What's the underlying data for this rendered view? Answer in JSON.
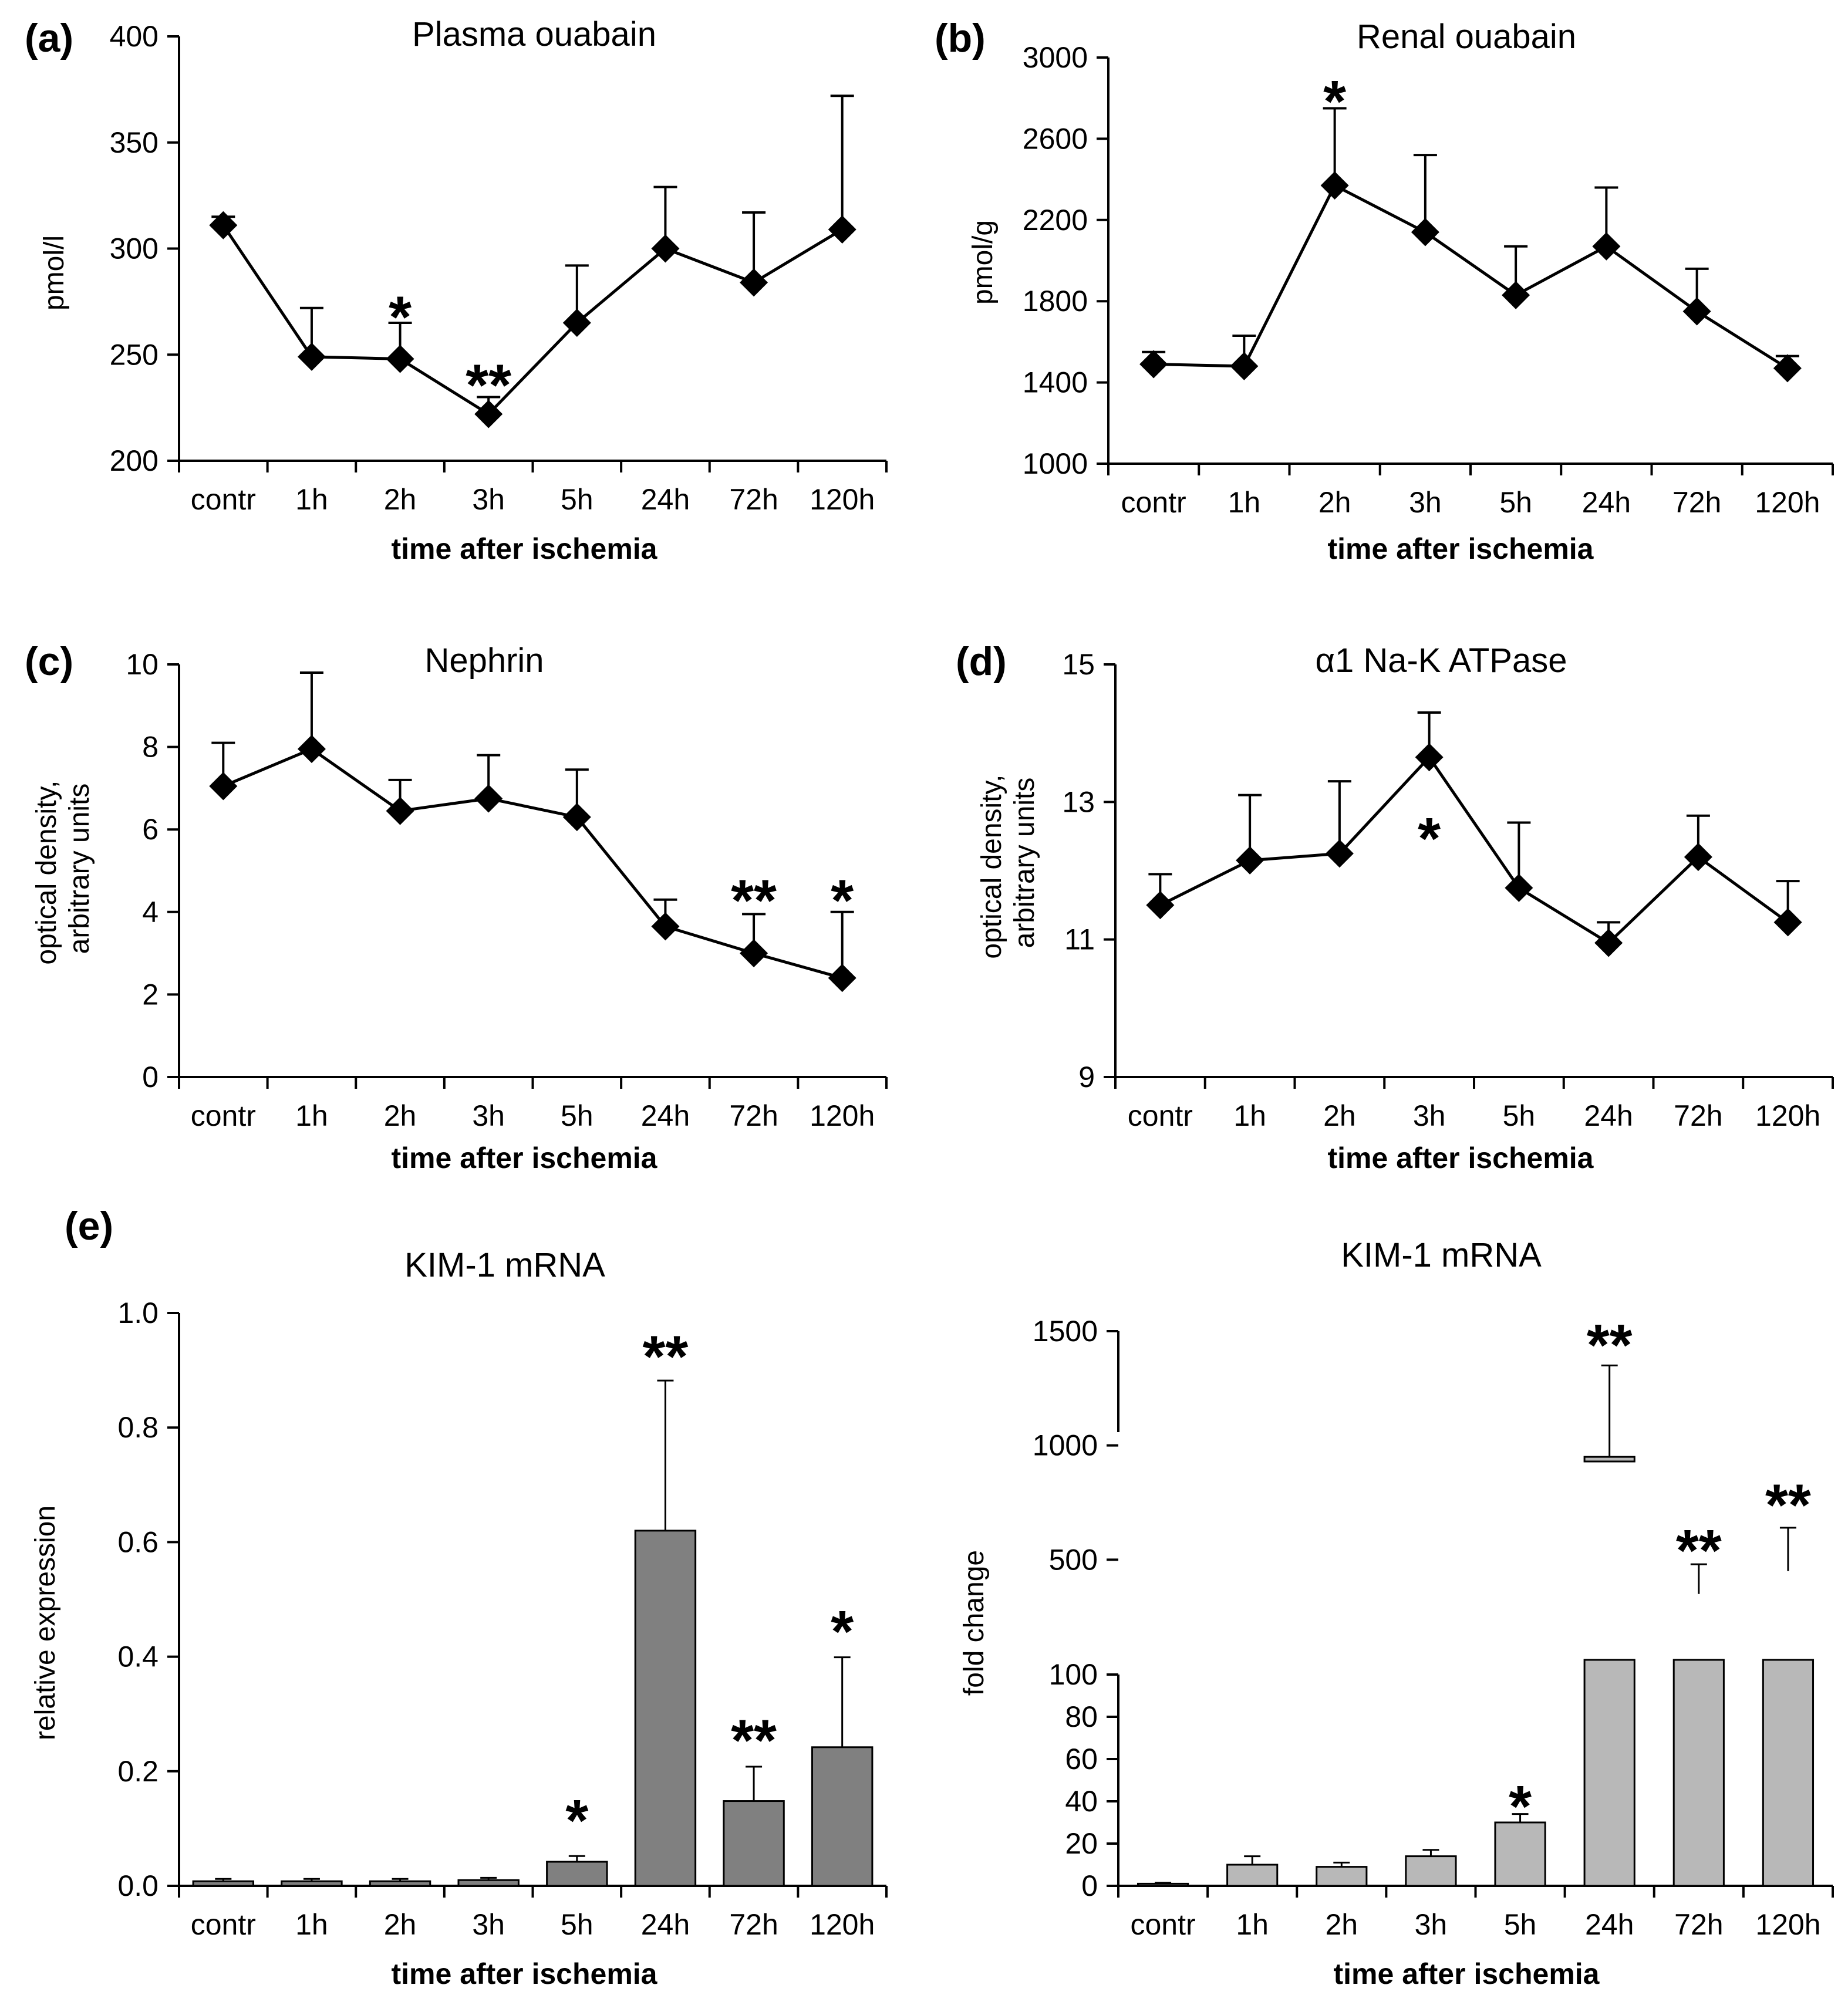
{
  "figure": {
    "xlabel": "time after ischemia",
    "categories": [
      "contr",
      "1h",
      "2h",
      "3h",
      "5h",
      "24h",
      "72h",
      "120h"
    ]
  },
  "chart_data": [
    {
      "id": "a",
      "panel": "(a)",
      "type": "line",
      "title": "Plasma ouabain",
      "ylabel": "pmol/l",
      "xlabel": "time after ischemia",
      "categories": [
        "contr",
        "1h",
        "2h",
        "3h",
        "5h",
        "24h",
        "72h",
        "120h"
      ],
      "ylim": [
        200,
        400
      ],
      "yticks": [
        200,
        250,
        300,
        350,
        400
      ],
      "values": [
        311,
        249,
        248,
        222,
        265,
        300,
        284,
        309
      ],
      "errors": [
        4,
        23,
        17,
        8,
        27,
        29,
        33,
        63
      ],
      "stars": [
        {
          "index": 2,
          "label": "*",
          "value": 272
        },
        {
          "index": 3,
          "label": "**",
          "value": 240
        }
      ]
    },
    {
      "id": "b",
      "panel": "(b)",
      "type": "line",
      "title": "Renal ouabain",
      "ylabel": "pmol/g",
      "xlabel": "time after ischemia",
      "categories": [
        "contr",
        "1h",
        "2h",
        "3h",
        "5h",
        "24h",
        "72h",
        "120h"
      ],
      "ylim": [
        1000,
        3000
      ],
      "yticks": [
        1000,
        1400,
        1800,
        2200,
        2600,
        3000
      ],
      "values": [
        1490,
        1480,
        2370,
        2140,
        1830,
        2070,
        1750,
        1470
      ],
      "errors": [
        60,
        150,
        380,
        380,
        240,
        290,
        210,
        60
      ],
      "stars": [
        {
          "index": 2,
          "label": "*",
          "value": 2830
        }
      ]
    },
    {
      "id": "c",
      "panel": "(c)",
      "type": "line",
      "title": "Nephrin",
      "ylabel": [
        "optical density,",
        "arbitrary units"
      ],
      "xlabel": "time after ischemia",
      "categories": [
        "contr",
        "1h",
        "2h",
        "3h",
        "5h",
        "24h",
        "72h",
        "120h"
      ],
      "ylim": [
        0,
        10
      ],
      "yticks": [
        0,
        2,
        4,
        6,
        8,
        10
      ],
      "values": [
        7.05,
        7.95,
        6.45,
        6.75,
        6.3,
        3.65,
        3.0,
        2.4
      ],
      "errors": [
        1.05,
        1.85,
        0.75,
        1.05,
        1.15,
        0.65,
        0.95,
        1.6
      ],
      "stars": [
        {
          "index": 6,
          "label": "**",
          "value": 4.5
        },
        {
          "index": 7,
          "label": "*",
          "value": 4.5
        }
      ]
    },
    {
      "id": "d",
      "panel": "(d)",
      "type": "line",
      "title": "α1 Na-K ATPase",
      "ylabel": [
        "optical density,",
        "arbitrary units"
      ],
      "xlabel": "time after ischemia",
      "categories": [
        "contr",
        "1h",
        "2h",
        "3h",
        "5h",
        "24h",
        "72h",
        "120h"
      ],
      "ylim": [
        9,
        15
      ],
      "yticks": [
        9,
        11,
        13,
        15
      ],
      "values": [
        11.5,
        12.15,
        12.25,
        13.65,
        11.75,
        10.95,
        12.2,
        11.25
      ],
      "errors": [
        0.45,
        0.95,
        1.05,
        0.65,
        0.95,
        0.3,
        0.6,
        0.6
      ],
      "stars": [
        {
          "index": 3,
          "label": "*",
          "value": 12.6
        }
      ]
    },
    {
      "id": "e1",
      "panel": "(e)",
      "type": "bar",
      "title": "KIM-1 mRNA",
      "ylabel": "relative expression",
      "xlabel": "time after ischemia",
      "categories": [
        "contr",
        "1h",
        "2h",
        "3h",
        "5h",
        "24h",
        "72h",
        "120h"
      ],
      "ylim": [
        0,
        1.0
      ],
      "yticks": [
        "0.0",
        "0.2",
        "0.4",
        "0.6",
        "0.8",
        "1.0"
      ],
      "values": [
        0.008,
        0.008,
        0.008,
        0.01,
        0.042,
        0.62,
        0.148,
        0.242
      ],
      "errors": [
        0.004,
        0.004,
        0.004,
        0.004,
        0.01,
        0.262,
        0.06,
        0.157
      ],
      "bar_color": "#808080",
      "stars": [
        {
          "index": 4,
          "label": "*",
          "value": 0.13
        },
        {
          "index": 5,
          "label": "**",
          "value": 0.94
        },
        {
          "index": 6,
          "label": "**",
          "value": 0.27
        },
        {
          "index": 7,
          "label": "*",
          "value": 0.46
        }
      ]
    },
    {
      "id": "e2",
      "panel": "",
      "type": "bar",
      "title": "KIM-1 mRNA",
      "ylabel": "fold  change",
      "xlabel": "time after ischemia",
      "categories": [
        "contr",
        "1h",
        "2h",
        "3h",
        "5h",
        "24h",
        "72h",
        "120h"
      ],
      "axis_break": true,
      "lower_ylim": [
        0,
        100
      ],
      "lower_yticks": [
        0,
        20,
        40,
        60,
        80,
        100
      ],
      "upper_ylim": [
        0,
        1500
      ],
      "upper_yticks": [
        500,
        1000,
        1500
      ],
      "values": [
        1,
        10,
        9,
        14,
        30,
        950,
        350,
        450
      ],
      "errors": [
        0.5,
        4,
        2,
        3,
        4,
        400,
        130,
        190
      ],
      "bar_color": "#b8b8b8",
      "stars": [
        {
          "index": 4,
          "label": "*",
          "value": 42,
          "axis": "lower"
        },
        {
          "index": 5,
          "label": "**",
          "value": 1480,
          "axis": "upper"
        },
        {
          "index": 6,
          "label": "**",
          "value": 580,
          "axis": "upper"
        },
        {
          "index": 7,
          "label": "**",
          "value": 780,
          "axis": "upper"
        }
      ]
    }
  ]
}
